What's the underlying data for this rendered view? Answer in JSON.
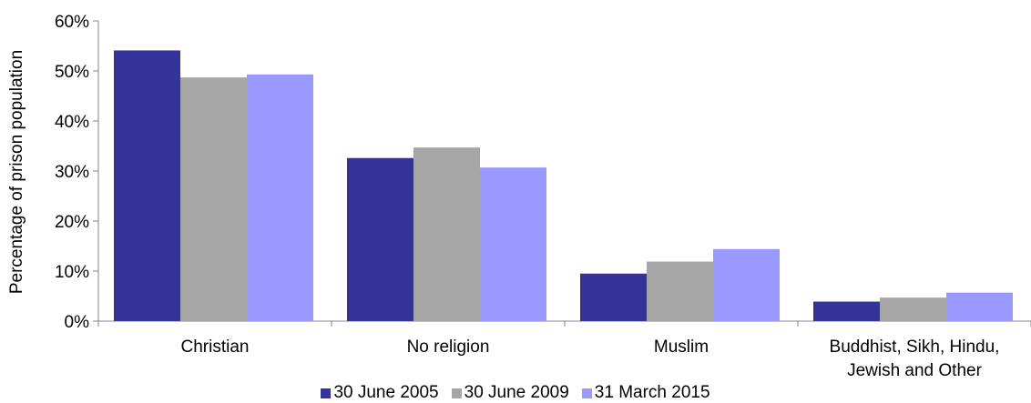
{
  "chart_data": {
    "type": "bar",
    "categories": [
      "Christian",
      "No religion",
      "Muslim",
      "Buddhist, Sikh, Hindu, Jewish and Other"
    ],
    "category_lines": [
      [
        "Christian"
      ],
      [
        "No religion"
      ],
      [
        "Muslim"
      ],
      [
        "Buddhist, Sikh, Hindu,",
        "Jewish and Other"
      ]
    ],
    "series": [
      {
        "name": "30 June 2005",
        "color": "#333399",
        "values": [
          54.1,
          32.6,
          9.5,
          3.9
        ]
      },
      {
        "name": "30 June 2009",
        "color": "#A6A6A6",
        "values": [
          48.7,
          34.7,
          11.9,
          4.7
        ]
      },
      {
        "name": "31 March 2015",
        "color": "#9999FF",
        "values": [
          49.3,
          30.7,
          14.4,
          5.7
        ]
      }
    ],
    "ylabel": "Percentage of prison population",
    "ylim": [
      0,
      60
    ],
    "yticks": [
      0,
      10,
      20,
      30,
      40,
      50,
      60
    ],
    "ytick_labels": [
      "0%",
      "10%",
      "20%",
      "30%",
      "40%",
      "50%",
      "60%"
    ],
    "grid": false,
    "legend_position": "bottom"
  }
}
